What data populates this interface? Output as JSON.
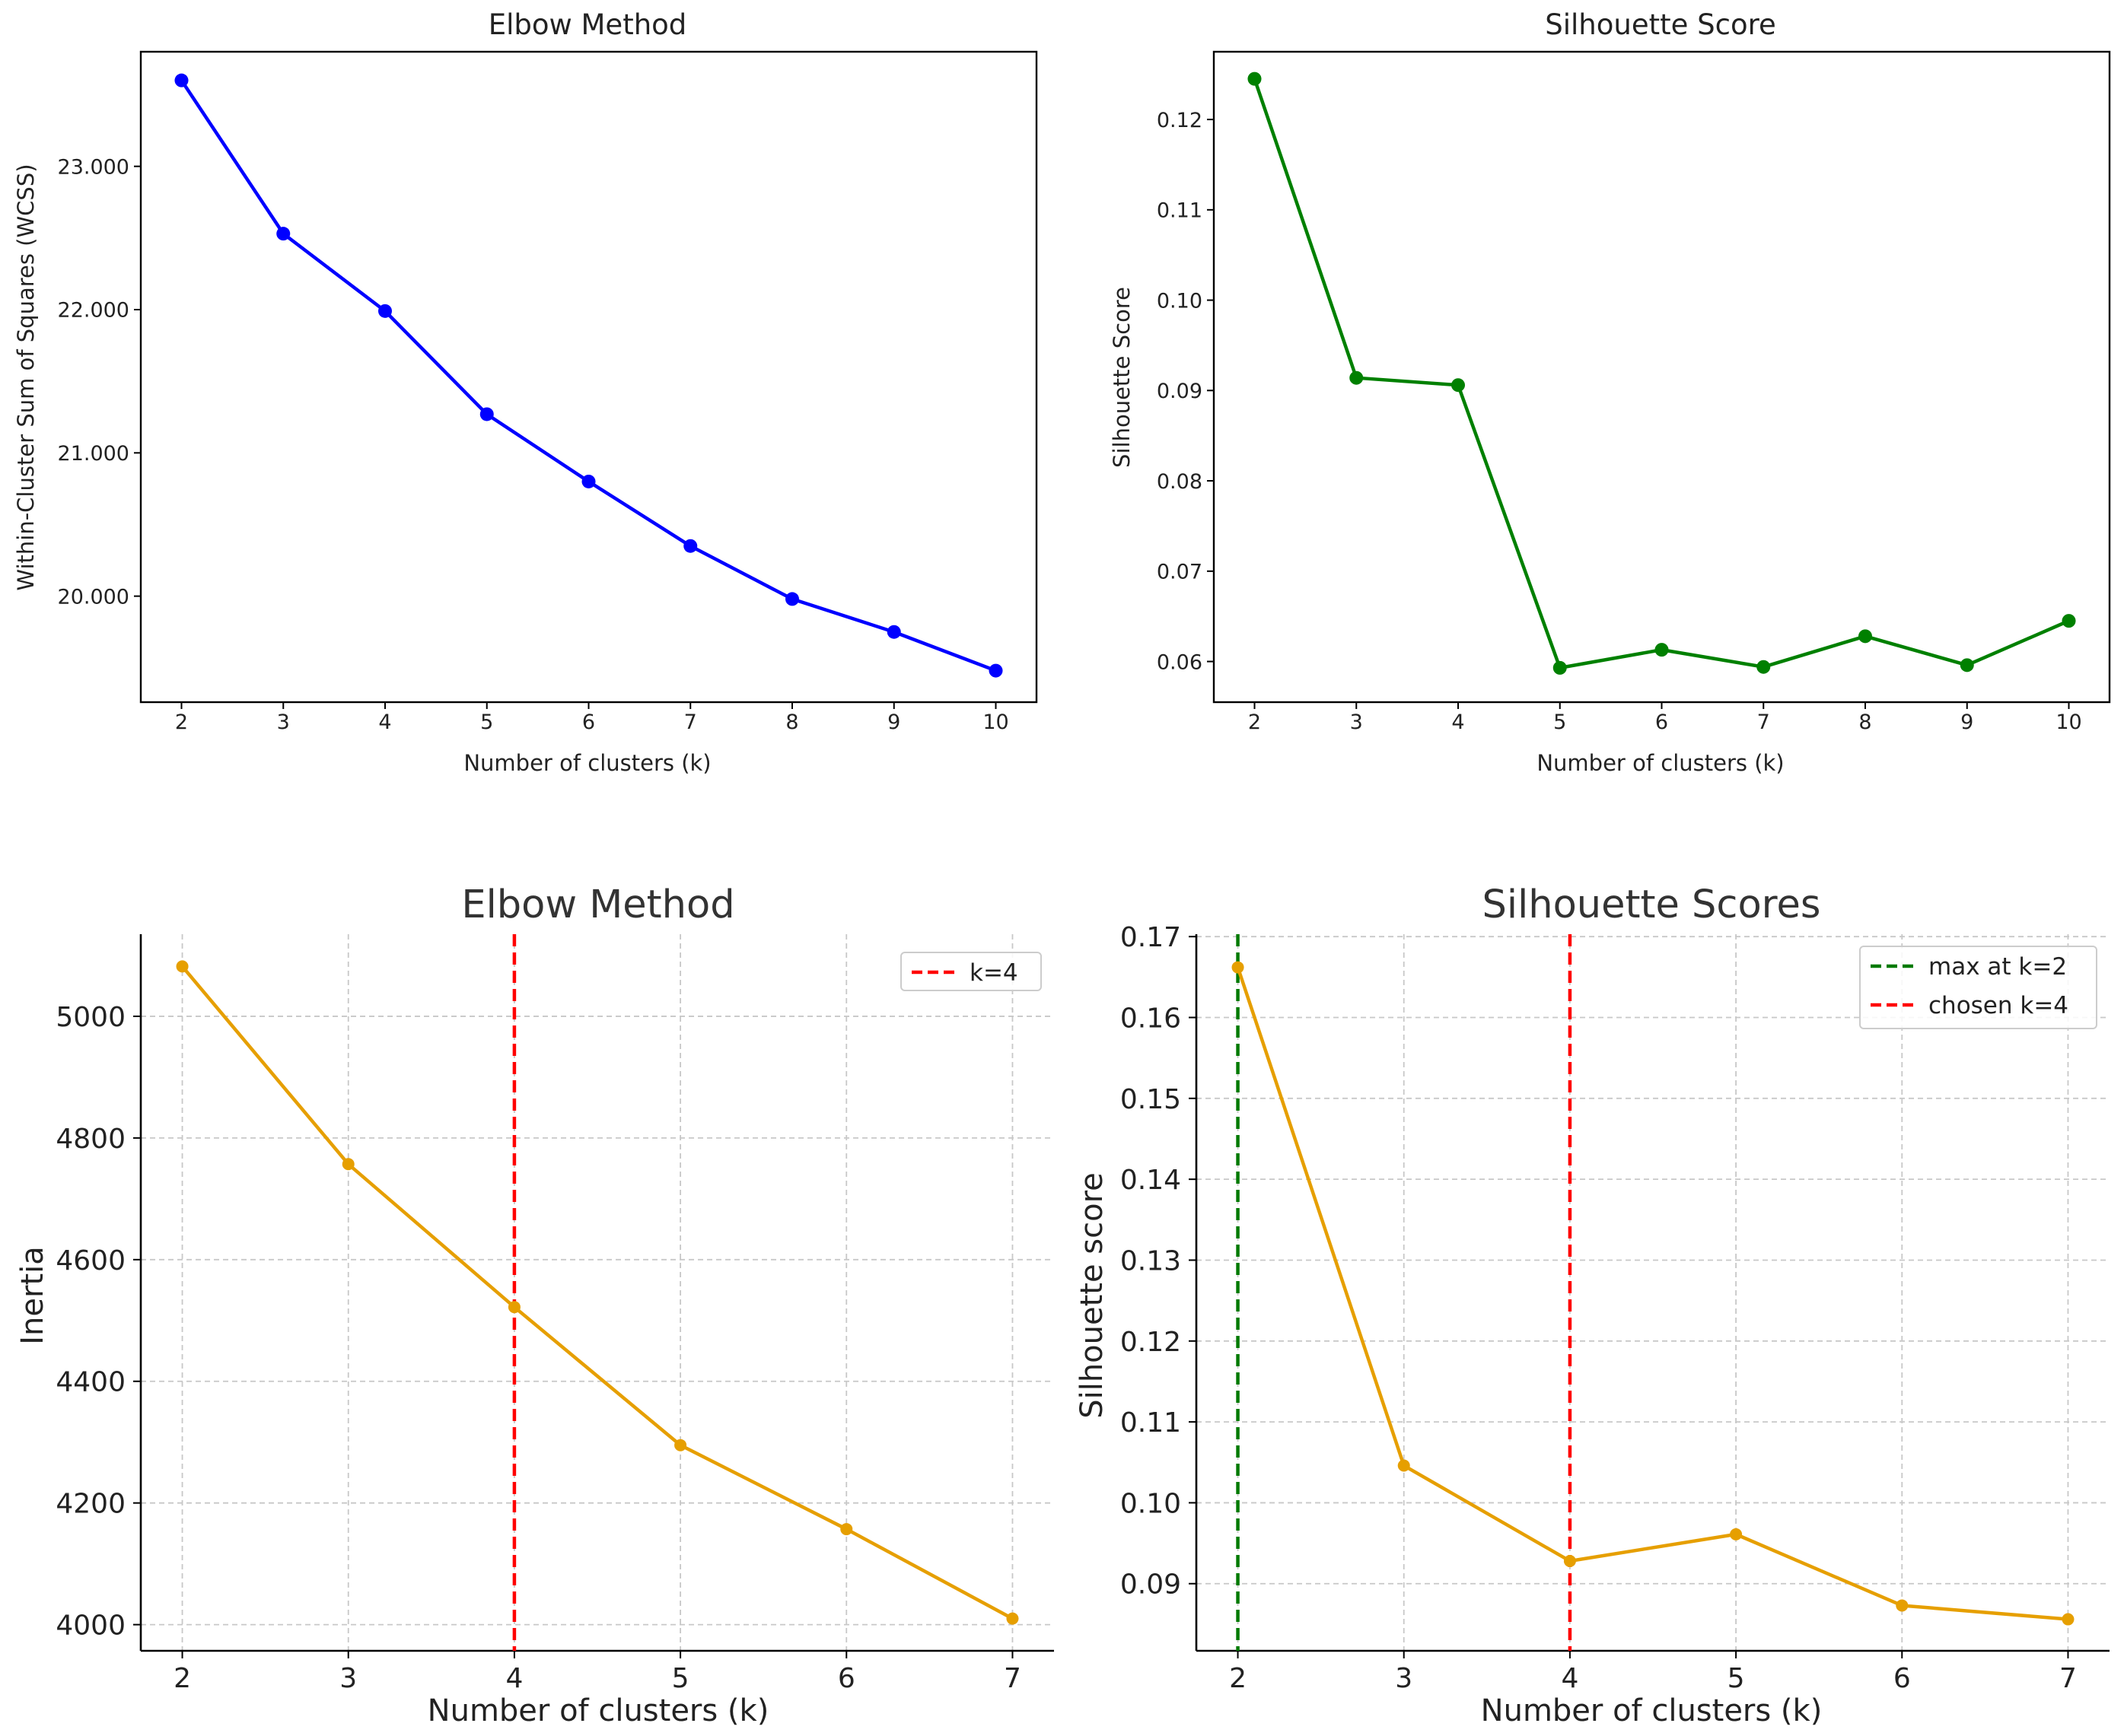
{
  "colors": {
    "background": "#ffffff",
    "axis": "#000000",
    "text": "#222222",
    "grid": "#c8c8c8",
    "blue": "#0000ff",
    "green": "#008000",
    "orange": "#e69f00",
    "red": "#ff0000",
    "dark_green": "#007a00"
  },
  "chart_data": [
    {
      "id": "elbow1",
      "type": "line",
      "title": "Elbow Method",
      "xlabel": "Number of clusters (k)",
      "ylabel": "Within-Cluster Sum of Squares (WCSS)",
      "x": [
        2,
        3,
        4,
        5,
        6,
        7,
        8,
        9,
        10
      ],
      "series": [
        {
          "name": "WCSS",
          "color": "#0000ff",
          "values": [
            23600,
            22530,
            21990,
            21270,
            20800,
            20350,
            19980,
            19750,
            19480
          ]
        }
      ],
      "xticks": [
        2,
        3,
        4,
        5,
        6,
        7,
        8,
        9,
        10
      ],
      "xtick_labels": [
        "2",
        "3",
        "4",
        "5",
        "6",
        "7",
        "8",
        "9",
        "10"
      ],
      "yticks": [
        20000,
        21000,
        22000,
        23000
      ],
      "ytick_labels": [
        "20.000",
        "21.000",
        "22.000",
        "23.000"
      ],
      "xlim": [
        1.6,
        10.4
      ],
      "ylim": [
        19260,
        23800
      ],
      "grid": false,
      "vlines": [],
      "legend": []
    },
    {
      "id": "sil1",
      "type": "line",
      "title": "Silhouette Score",
      "xlabel": "Number of clusters (k)",
      "ylabel": "Silhouette Score",
      "x": [
        2,
        3,
        4,
        5,
        6,
        7,
        8,
        9,
        10
      ],
      "series": [
        {
          "name": "Silhouette",
          "color": "#008000",
          "values": [
            0.1245,
            0.0914,
            0.0906,
            0.0593,
            0.0613,
            0.0594,
            0.0628,
            0.0596,
            0.0645
          ]
        }
      ],
      "xticks": [
        2,
        3,
        4,
        5,
        6,
        7,
        8,
        9,
        10
      ],
      "xtick_labels": [
        "2",
        "3",
        "4",
        "5",
        "6",
        "7",
        "8",
        "9",
        "10"
      ],
      "yticks": [
        0.06,
        0.07,
        0.08,
        0.09,
        0.1,
        0.11,
        0.12
      ],
      "ytick_labels": [
        "0.06",
        "0.07",
        "0.08",
        "0.09",
        "0.10",
        "0.11",
        "0.12"
      ],
      "xlim": [
        1.6,
        10.4
      ],
      "ylim": [
        0.0555,
        0.1275
      ],
      "grid": false,
      "vlines": [],
      "legend": []
    },
    {
      "id": "elbow2",
      "type": "line",
      "title": "Elbow Method",
      "xlabel": "Number of clusters (k)",
      "ylabel": "Inertia",
      "x": [
        2,
        3,
        4,
        5,
        6,
        7
      ],
      "series": [
        {
          "name": "Inertia",
          "color": "#e69f00",
          "values": [
            5082,
            4757,
            4522,
            4295,
            4157,
            4010
          ]
        }
      ],
      "xticks": [
        2,
        3,
        4,
        5,
        6,
        7
      ],
      "xtick_labels": [
        "2",
        "3",
        "4",
        "5",
        "6",
        "7"
      ],
      "yticks": [
        4000,
        4200,
        4400,
        4600,
        4800,
        5000
      ],
      "ytick_labels": [
        "4000",
        "4200",
        "4400",
        "4600",
        "4800",
        "5000"
      ],
      "xlim": [
        1.75,
        7.25
      ],
      "ylim": [
        3957,
        5135
      ],
      "grid": true,
      "vlines": [
        {
          "x": 4,
          "color": "#ff0000",
          "label": "k=4"
        }
      ],
      "legend": [
        "k=4"
      ],
      "legend_position": "top-right"
    },
    {
      "id": "sil2",
      "type": "line",
      "title": "Silhouette Scores",
      "xlabel": "Number of clusters (k)",
      "ylabel": "Silhouette score",
      "x": [
        2,
        3,
        4,
        5,
        6,
        7
      ],
      "series": [
        {
          "name": "Silhouette",
          "color": "#e69f00",
          "values": [
            0.1662,
            0.1046,
            0.0928,
            0.0961,
            0.0873,
            0.0856
          ]
        }
      ],
      "xticks": [
        2,
        3,
        4,
        5,
        6,
        7
      ],
      "xtick_labels": [
        "2",
        "3",
        "4",
        "5",
        "6",
        "7"
      ],
      "yticks": [
        0.09,
        0.1,
        0.11,
        0.12,
        0.13,
        0.14,
        0.15,
        0.16,
        0.17
      ],
      "ytick_labels": [
        "0.09",
        "0.10",
        "0.11",
        "0.12",
        "0.13",
        "0.14",
        "0.15",
        "0.16",
        "0.17"
      ],
      "xlim": [
        1.75,
        7.25
      ],
      "ylim": [
        0.0817,
        0.1703
      ],
      "grid": true,
      "vlines": [
        {
          "x": 2,
          "color": "#007a00",
          "label": "max at k=2"
        },
        {
          "x": 4,
          "color": "#ff0000",
          "label": "chosen k=4"
        }
      ],
      "legend": [
        "max at k=2",
        "chosen k=4"
      ],
      "legend_position": "top-right"
    }
  ]
}
